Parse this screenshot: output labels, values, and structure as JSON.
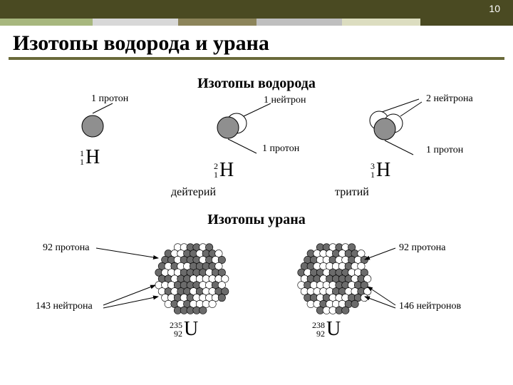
{
  "slide": {
    "number": "10"
  },
  "ribbon": {
    "colors": [
      "#a7b77e",
      "#d8d8d8",
      "#8c845a",
      "#bfbfbf",
      "#dcddc0",
      "#4a4a22"
    ],
    "widths": [
      130,
      120,
      110,
      120,
      110,
      130
    ]
  },
  "title": {
    "text": "Изотопы водорода и урана",
    "fontsize": 30,
    "underline_color": "#6a6a3a"
  },
  "hydrogen": {
    "section_title": "Изотопы водорода",
    "label_proton": "1 протон",
    "label_1neutron": "1 нейтрон",
    "label_2neutron": "2 нейтрона",
    "deuterium": "дейтерий",
    "tritium": "тритий",
    "symbols": [
      {
        "mass": "1",
        "z": "1",
        "el": "H"
      },
      {
        "mass": "2",
        "z": "1",
        "el": "H"
      },
      {
        "mass": "3",
        "z": "1",
        "el": "H"
      }
    ],
    "diagram": {
      "proton_fill": "#8f8f8f",
      "neutron_fill": "#ffffff",
      "stroke": "#000000",
      "radius": 15,
      "small_radius": 12
    }
  },
  "uranium": {
    "section_title": "Изотопы урана",
    "label_92p": "92 протона",
    "label_143n": "143 нейтрона",
    "label_146n": "146 нейтронов",
    "symbols": [
      {
        "mass": "235",
        "z": "92",
        "el": "U"
      },
      {
        "mass": "238",
        "z": "92",
        "el": "U"
      }
    ],
    "diagram": {
      "proton_fill": "#6b6b6b",
      "neutron_fill": "#ffffff",
      "stroke": "#000000",
      "cluster_radius": 52,
      "particle_radius": 5.2
    }
  }
}
